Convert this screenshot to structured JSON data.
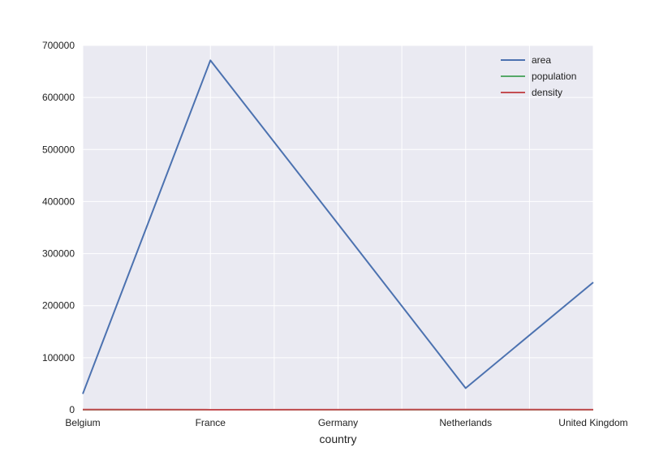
{
  "chart_data": {
    "type": "line",
    "xlabel": "country",
    "ylabel": "",
    "categories": [
      "Belgium",
      "France",
      "Germany",
      "Netherlands",
      "United Kingdom"
    ],
    "ylim": [
      0,
      700000
    ],
    "yticks": [
      0,
      100000,
      200000,
      300000,
      400000,
      500000,
      600000,
      700000
    ],
    "grid": true,
    "legend_position": "top-right",
    "series": [
      {
        "name": "area",
        "color": "#4c72b0",
        "values": [
          30510,
          671308,
          357050,
          41526,
          244820
        ]
      },
      {
        "name": "population",
        "color": "#55a868",
        "values": [
          11.3,
          64.3,
          81.3,
          16.9,
          64.9
        ]
      },
      {
        "name": "density",
        "color": "#c44e52",
        "values": [
          370.37,
          95.78,
          227.69,
          406.97,
          265.09
        ]
      }
    ]
  }
}
